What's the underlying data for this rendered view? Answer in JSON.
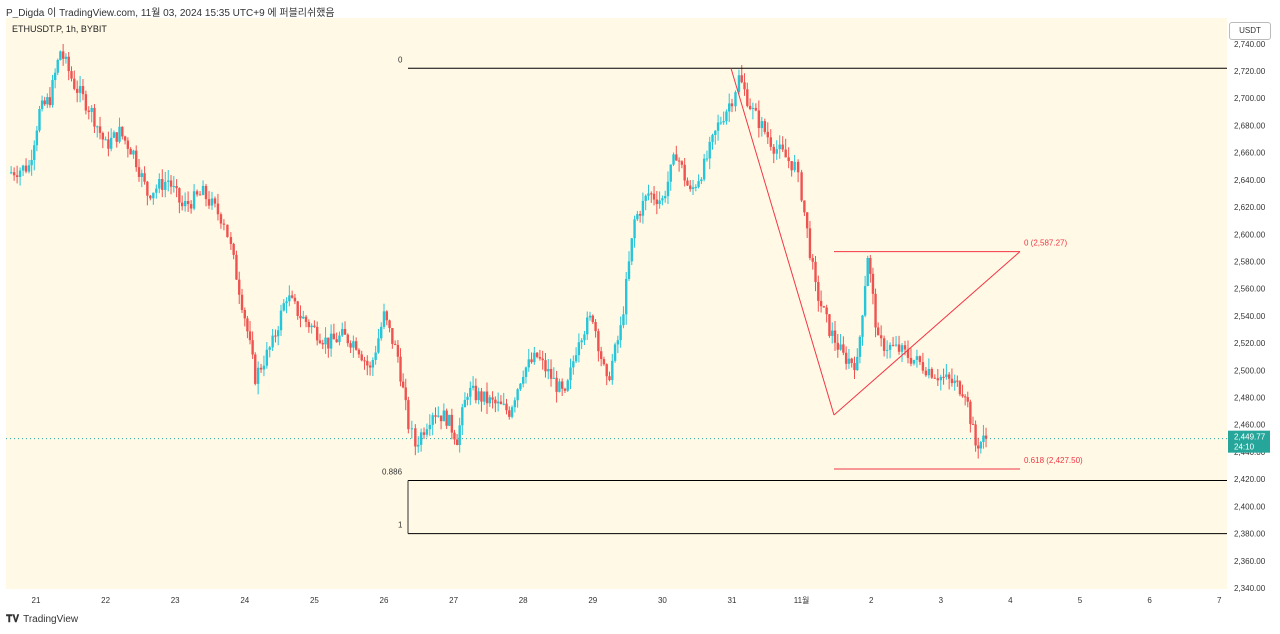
{
  "header": {
    "text": "P_Digda 이 TradingView.com, 11월 03, 2024 15:35 UTC+9 에 퍼블리쉬했음"
  },
  "symbol": {
    "text": "ETHUSDT.P, 1h, BYBIT"
  },
  "currency": "USDT",
  "footer": {
    "brand": "TradingView"
  },
  "price_tag": {
    "value": "2,449.77",
    "countdown": "24:10"
  },
  "colors": {
    "up": "#26a69a",
    "up_wick": "#26c6da",
    "down": "#ef5350",
    "fib": "#000000",
    "pattern": "#f23645",
    "bg": "#fff9e6"
  },
  "chart_data": {
    "type": "candlestick",
    "title": "ETHUSDT.P, 1h, BYBIT",
    "xlabel": "",
    "ylabel": "",
    "ylim": [
      2340,
      2740
    ],
    "x_ticks": [
      "21",
      "22",
      "23",
      "24",
      "25",
      "26",
      "27",
      "28",
      "29",
      "30",
      "31",
      "11월",
      "2",
      "3",
      "4",
      "5",
      "6",
      "7"
    ],
    "y_ticks": [
      "2,740.00",
      "2,720.00",
      "2,700.00",
      "2,680.00",
      "2,660.00",
      "2,640.00",
      "2,620.00",
      "2,600.00",
      "2,580.00",
      "2,560.00",
      "2,540.00",
      "2,520.00",
      "2,500.00",
      "2,480.00",
      "2,460.00",
      "2,440.00",
      "2,420.00",
      "2,400.00",
      "2,380.00",
      "2,360.00",
      "2,340.00"
    ],
    "y_tick_values": [
      2740,
      2720,
      2700,
      2680,
      2660,
      2640,
      2620,
      2600,
      2580,
      2560,
      2540,
      2520,
      2500,
      2480,
      2460,
      2440,
      2420,
      2400,
      2380,
      2360,
      2340
    ],
    "last_price": 2449.77,
    "price_path": [
      [
        20.6,
        2645
      ],
      [
        20.9,
        2650
      ],
      [
        21.05,
        2690
      ],
      [
        21.2,
        2700
      ],
      [
        21.35,
        2735
      ],
      [
        21.55,
        2710
      ],
      [
        21.8,
        2690
      ],
      [
        22.0,
        2665
      ],
      [
        22.2,
        2675
      ],
      [
        22.4,
        2660
      ],
      [
        22.6,
        2630
      ],
      [
        22.9,
        2640
      ],
      [
        23.1,
        2620
      ],
      [
        23.4,
        2630
      ],
      [
        23.7,
        2610
      ],
      [
        23.8,
        2590
      ],
      [
        24.0,
        2540
      ],
      [
        24.15,
        2495
      ],
      [
        24.4,
        2520
      ],
      [
        24.6,
        2555
      ],
      [
        24.8,
        2540
      ],
      [
        25.0,
        2530
      ],
      [
        25.2,
        2520
      ],
      [
        25.4,
        2525
      ],
      [
        25.6,
        2520
      ],
      [
        25.8,
        2500
      ],
      [
        26.0,
        2540
      ],
      [
        26.2,
        2510
      ],
      [
        26.35,
        2460
      ],
      [
        26.45,
        2445
      ],
      [
        26.7,
        2470
      ],
      [
        26.9,
        2465
      ],
      [
        27.05,
        2450
      ],
      [
        27.2,
        2485
      ],
      [
        27.4,
        2480
      ],
      [
        27.6,
        2475
      ],
      [
        27.8,
        2470
      ],
      [
        28.0,
        2500
      ],
      [
        28.2,
        2510
      ],
      [
        28.4,
        2495
      ],
      [
        28.6,
        2480
      ],
      [
        28.8,
        2525
      ],
      [
        29.0,
        2540
      ],
      [
        29.2,
        2490
      ],
      [
        29.4,
        2530
      ],
      [
        29.6,
        2610
      ],
      [
        29.8,
        2630
      ],
      [
        30.0,
        2625
      ],
      [
        30.2,
        2660
      ],
      [
        30.4,
        2630
      ],
      [
        30.6,
        2650
      ],
      [
        30.8,
        2680
      ],
      [
        31.0,
        2700
      ],
      [
        31.1,
        2715
      ],
      [
        31.3,
        2690
      ],
      [
        31.6,
        2665
      ],
      [
        31.9,
        2650
      ],
      [
        32.0,
        2630
      ],
      [
        32.2,
        2560
      ],
      [
        32.4,
        2530
      ],
      [
        32.6,
        2510
      ],
      [
        32.8,
        2505
      ],
      [
        32.95,
        2585
      ],
      [
        33.1,
        2520
      ],
      [
        33.4,
        2515
      ],
      [
        33.7,
        2505
      ],
      [
        34.0,
        2495
      ],
      [
        34.2,
        2490
      ],
      [
        34.35,
        2485
      ],
      [
        34.5,
        2445
      ],
      [
        34.65,
        2450
      ]
    ],
    "annotations": [
      {
        "type": "hline",
        "label": "0",
        "price": 2722
      },
      {
        "type": "hline",
        "label": "0.886",
        "price": 2419
      },
      {
        "type": "hline",
        "label": "1",
        "price": 2380
      },
      {
        "type": "triangle_fib",
        "label_top": "0 (2,587.27)",
        "price_top": 2587.27,
        "label_bottom": "0.618 (2,427.50)",
        "price_bottom": 2427.5
      }
    ]
  }
}
